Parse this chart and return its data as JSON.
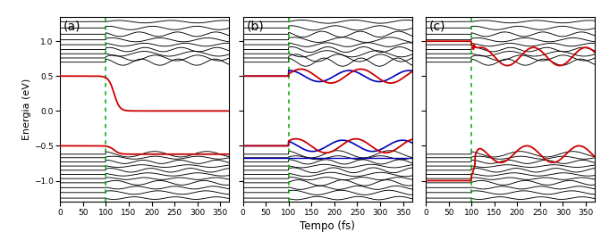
{
  "title_a": "(a)",
  "title_b": "(b)",
  "title_c": "(c)",
  "xlabel": "Tempo (fs)",
  "ylabel": "Energia (eV)",
  "xlim": [
    0,
    370
  ],
  "ylim": [
    -1.3,
    1.35
  ],
  "yticks": [
    -1.0,
    -0.5,
    0.0,
    0.5,
    1.0
  ],
  "xticks": [
    0,
    50,
    100,
    150,
    200,
    250,
    300,
    350
  ],
  "t_switch": 100,
  "t_max": 370,
  "background_color": "#ffffff",
  "black_line_color": "#000000",
  "red_line_color": "#cc0000",
  "blue_line_color": "#0000bb",
  "green_dash_color": "#00aa00",
  "upper_levels": [
    1.28,
    1.19,
    1.1,
    1.02,
    0.95,
    0.88,
    0.82,
    0.76,
    0.7
  ],
  "lower_levels": [
    -0.62,
    -0.67,
    -0.73,
    -0.79,
    -0.85,
    -0.91,
    -0.97,
    -1.03,
    -1.1,
    -1.17,
    -1.25
  ]
}
